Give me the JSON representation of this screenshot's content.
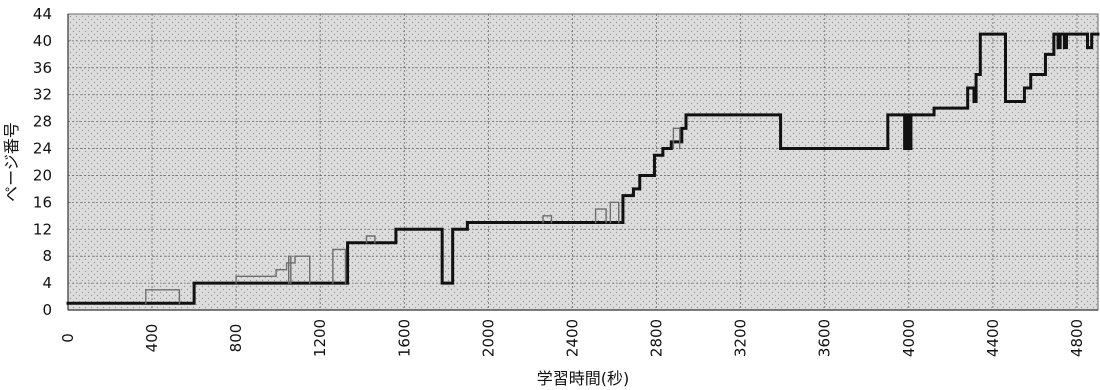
{
  "chart_data": {
    "type": "line",
    "title": "",
    "xlabel": "学習時間(秒)",
    "ylabel": "ページ番号",
    "xlim": [
      0,
      4900
    ],
    "ylim": [
      0,
      44
    ],
    "xticks": [
      0,
      400,
      800,
      1200,
      1600,
      2000,
      2400,
      2800,
      3200,
      3600,
      4000,
      4400,
      4800
    ],
    "yticks": [
      0,
      4,
      8,
      12,
      16,
      20,
      24,
      28,
      32,
      36,
      40,
      44
    ],
    "grid": true,
    "legend": "none",
    "colors": {
      "plot_background": "#d9d9d9",
      "dotted_background": "#9a9a9a",
      "grid": "#6e6e6e",
      "main_line": "#111111",
      "secondary_line": "#6e6e6e"
    },
    "series": [
      {
        "style": "thick",
        "points": [
          [
            0,
            1
          ],
          [
            600,
            1
          ],
          [
            600,
            4
          ],
          [
            1330,
            4
          ],
          [
            1330,
            10
          ],
          [
            1560,
            10
          ],
          [
            1560,
            12
          ],
          [
            1780,
            12
          ],
          [
            1780,
            4
          ],
          [
            1830,
            4
          ],
          [
            1830,
            12
          ],
          [
            1900,
            12
          ],
          [
            1900,
            13
          ],
          [
            2640,
            13
          ],
          [
            2640,
            17
          ],
          [
            2690,
            17
          ],
          [
            2690,
            18
          ],
          [
            2720,
            18
          ],
          [
            2720,
            20
          ],
          [
            2790,
            20
          ],
          [
            2790,
            23
          ],
          [
            2830,
            23
          ],
          [
            2830,
            24
          ],
          [
            2870,
            24
          ],
          [
            2870,
            25
          ],
          [
            2920,
            25
          ],
          [
            2920,
            27
          ],
          [
            2940,
            27
          ],
          [
            2940,
            29
          ],
          [
            3390,
            29
          ],
          [
            3390,
            24
          ],
          [
            3900,
            24
          ],
          [
            3900,
            29
          ],
          [
            3980,
            29
          ],
          [
            3980,
            24
          ],
          [
            3990,
            24
          ],
          [
            3990,
            29
          ],
          [
            4000,
            29
          ],
          [
            4000,
            24
          ],
          [
            4010,
            24
          ],
          [
            4010,
            29
          ],
          [
            4120,
            29
          ],
          [
            4120,
            30
          ],
          [
            4280,
            30
          ],
          [
            4280,
            33
          ],
          [
            4310,
            33
          ],
          [
            4310,
            31
          ],
          [
            4320,
            31
          ],
          [
            4320,
            35
          ],
          [
            4340,
            35
          ],
          [
            4340,
            41
          ],
          [
            4460,
            41
          ],
          [
            4460,
            31
          ],
          [
            4550,
            31
          ],
          [
            4550,
            33
          ],
          [
            4580,
            33
          ],
          [
            4580,
            35
          ],
          [
            4650,
            35
          ],
          [
            4650,
            38
          ],
          [
            4690,
            38
          ],
          [
            4690,
            41
          ],
          [
            4710,
            41
          ],
          [
            4710,
            39
          ],
          [
            4720,
            39
          ],
          [
            4720,
            41
          ],
          [
            4740,
            41
          ],
          [
            4740,
            39
          ],
          [
            4750,
            39
          ],
          [
            4750,
            41
          ],
          [
            4850,
            41
          ],
          [
            4850,
            39
          ],
          [
            4870,
            39
          ],
          [
            4870,
            41
          ],
          [
            4900,
            41
          ]
        ]
      },
      {
        "style": "thin",
        "points": [
          [
            370,
            1
          ],
          [
            370,
            3
          ],
          [
            530,
            3
          ],
          [
            530,
            1
          ]
        ]
      },
      {
        "style": "thin",
        "points": [
          [
            800,
            4
          ],
          [
            800,
            5
          ],
          [
            990,
            5
          ],
          [
            990,
            6
          ],
          [
            1040,
            6
          ],
          [
            1040,
            7
          ],
          [
            1080,
            7
          ],
          [
            1080,
            8
          ],
          [
            1150,
            8
          ],
          [
            1150,
            4
          ]
        ]
      },
      {
        "style": "thin",
        "points": [
          [
            1050,
            4
          ],
          [
            1050,
            8
          ],
          [
            1060,
            8
          ],
          [
            1060,
            4
          ]
        ]
      },
      {
        "style": "thin",
        "points": [
          [
            1260,
            4
          ],
          [
            1260,
            9
          ],
          [
            1320,
            9
          ],
          [
            1320,
            4
          ]
        ]
      },
      {
        "style": "thin",
        "points": [
          [
            1420,
            10
          ],
          [
            1420,
            11
          ],
          [
            1460,
            11
          ],
          [
            1460,
            10
          ]
        ]
      },
      {
        "style": "thin",
        "points": [
          [
            2260,
            13
          ],
          [
            2260,
            14
          ],
          [
            2300,
            14
          ],
          [
            2300,
            13
          ]
        ]
      },
      {
        "style": "thin",
        "points": [
          [
            2510,
            13
          ],
          [
            2510,
            15
          ],
          [
            2560,
            15
          ],
          [
            2560,
            13
          ]
        ]
      },
      {
        "style": "thin",
        "points": [
          [
            2580,
            13
          ],
          [
            2580,
            16
          ],
          [
            2620,
            16
          ],
          [
            2620,
            13
          ]
        ]
      },
      {
        "style": "thin",
        "points": [
          [
            2880,
            24
          ],
          [
            2880,
            27
          ],
          [
            2910,
            27
          ],
          [
            2910,
            24
          ]
        ]
      }
    ]
  }
}
